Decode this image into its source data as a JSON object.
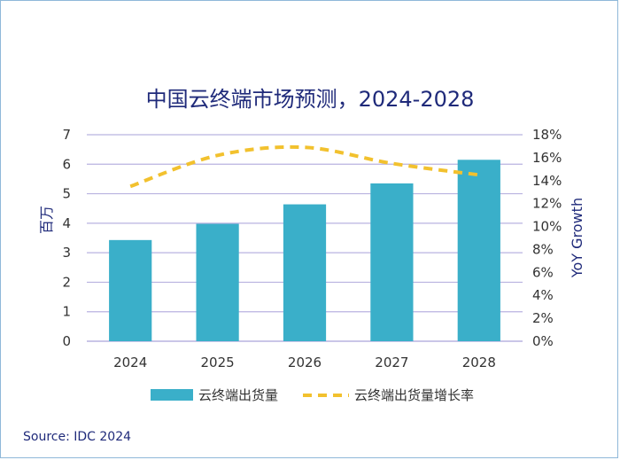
{
  "chart_data": {
    "type": "bar",
    "title": "中国云终端市场预测，2024-2028",
    "categories": [
      "2024",
      "2025",
      "2026",
      "2027",
      "2028"
    ],
    "series": [
      {
        "name": "云终端出货量",
        "type": "bar",
        "axis": "left",
        "color": "#3aafc9",
        "values": [
          3.43,
          3.98,
          4.64,
          5.35,
          6.15
        ]
      },
      {
        "name": "云终端出货量增长率",
        "type": "line",
        "style": "dashed",
        "axis": "right",
        "color": "#f2c12e",
        "values": [
          13.5,
          16.2,
          16.9,
          15.5,
          14.5
        ]
      }
    ],
    "ylabel": "百万",
    "y2label": "YoY Growth",
    "ylim": [
      0,
      7
    ],
    "y2lim": [
      0,
      18
    ],
    "yticks": [
      "0",
      "1",
      "2",
      "3",
      "4",
      "5",
      "6",
      "7"
    ],
    "y2ticks": [
      "0%",
      "2%",
      "4%",
      "6%",
      "8%",
      "10%",
      "12%",
      "14%",
      "16%",
      "18%"
    ],
    "grid": true,
    "legend_position": "bottom"
  },
  "source": "Source: IDC 2024",
  "colors": {
    "frame": "#8fb8d9",
    "grid": "#b9b3e0",
    "title": "#1f2a7a"
  }
}
